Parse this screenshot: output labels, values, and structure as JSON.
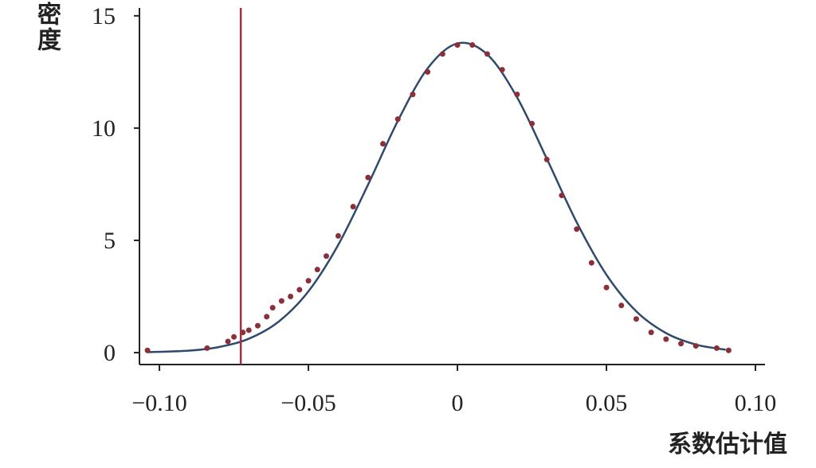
{
  "chart_data": {
    "type": "line",
    "xlabel": "系数估计值",
    "ylabel": "密度",
    "xlim": [
      -0.1067,
      0.1032
    ],
    "ylim": [
      -0.53,
      15.35
    ],
    "xticks": [
      {
        "value": -0.1,
        "label": "−0.10"
      },
      {
        "value": -0.05,
        "label": "−0.05"
      },
      0,
      {
        "value": 0.05,
        "label": "0.05"
      },
      {
        "value": 0.1,
        "label": "0.10"
      }
    ],
    "yticks": [
      0,
      5,
      10,
      15
    ],
    "vline": {
      "x": -0.0727,
      "color": "#a3303f"
    },
    "series": [
      {
        "type": "scatter",
        "color": "#8b2f3a",
        "x": [
          -0.104,
          -0.084,
          -0.077,
          -0.075,
          -0.072,
          -0.07,
          -0.067,
          -0.064,
          -0.062,
          -0.059,
          -0.056,
          -0.053,
          -0.05,
          -0.047,
          -0.044,
          -0.04,
          -0.035,
          -0.03,
          -0.025,
          -0.02,
          -0.015,
          -0.01,
          -0.005,
          0,
          0.005,
          0.01,
          0.015,
          0.02,
          0.025,
          0.03,
          0.035,
          0.04,
          0.045,
          0.05,
          0.055,
          0.06,
          0.065,
          0.07,
          0.075,
          0.08,
          0.087,
          0.091
        ],
        "values": [
          0.1,
          0.2,
          0.5,
          0.7,
          0.9,
          1.0,
          1.2,
          1.6,
          2.0,
          2.3,
          2.5,
          2.8,
          3.2,
          3.7,
          4.3,
          5.2,
          6.5,
          7.8,
          9.3,
          10.4,
          11.5,
          12.5,
          13.3,
          13.7,
          13.7,
          13.3,
          12.6,
          11.5,
          10.2,
          8.6,
          7.0,
          5.5,
          4.0,
          2.9,
          2.1,
          1.5,
          0.9,
          0.6,
          0.4,
          0.3,
          0.2,
          0.1
        ]
      },
      {
        "type": "line",
        "color": "#2f4a6d",
        "x": [
          -0.104,
          -0.09,
          -0.08,
          -0.07,
          -0.06,
          -0.05,
          -0.04,
          -0.03,
          -0.02,
          -0.01,
          0,
          0.01,
          0.02,
          0.03,
          0.04,
          0.05,
          0.06,
          0.07,
          0.08,
          0.09
        ],
        "values": [
          0.02,
          0.09,
          0.25,
          0.62,
          1.38,
          2.73,
          4.8,
          7.48,
          10.32,
          12.66,
          13.77,
          13.28,
          11.37,
          8.63,
          5.81,
          3.47,
          1.84,
          0.87,
          0.36,
          0.13
        ]
      }
    ]
  }
}
